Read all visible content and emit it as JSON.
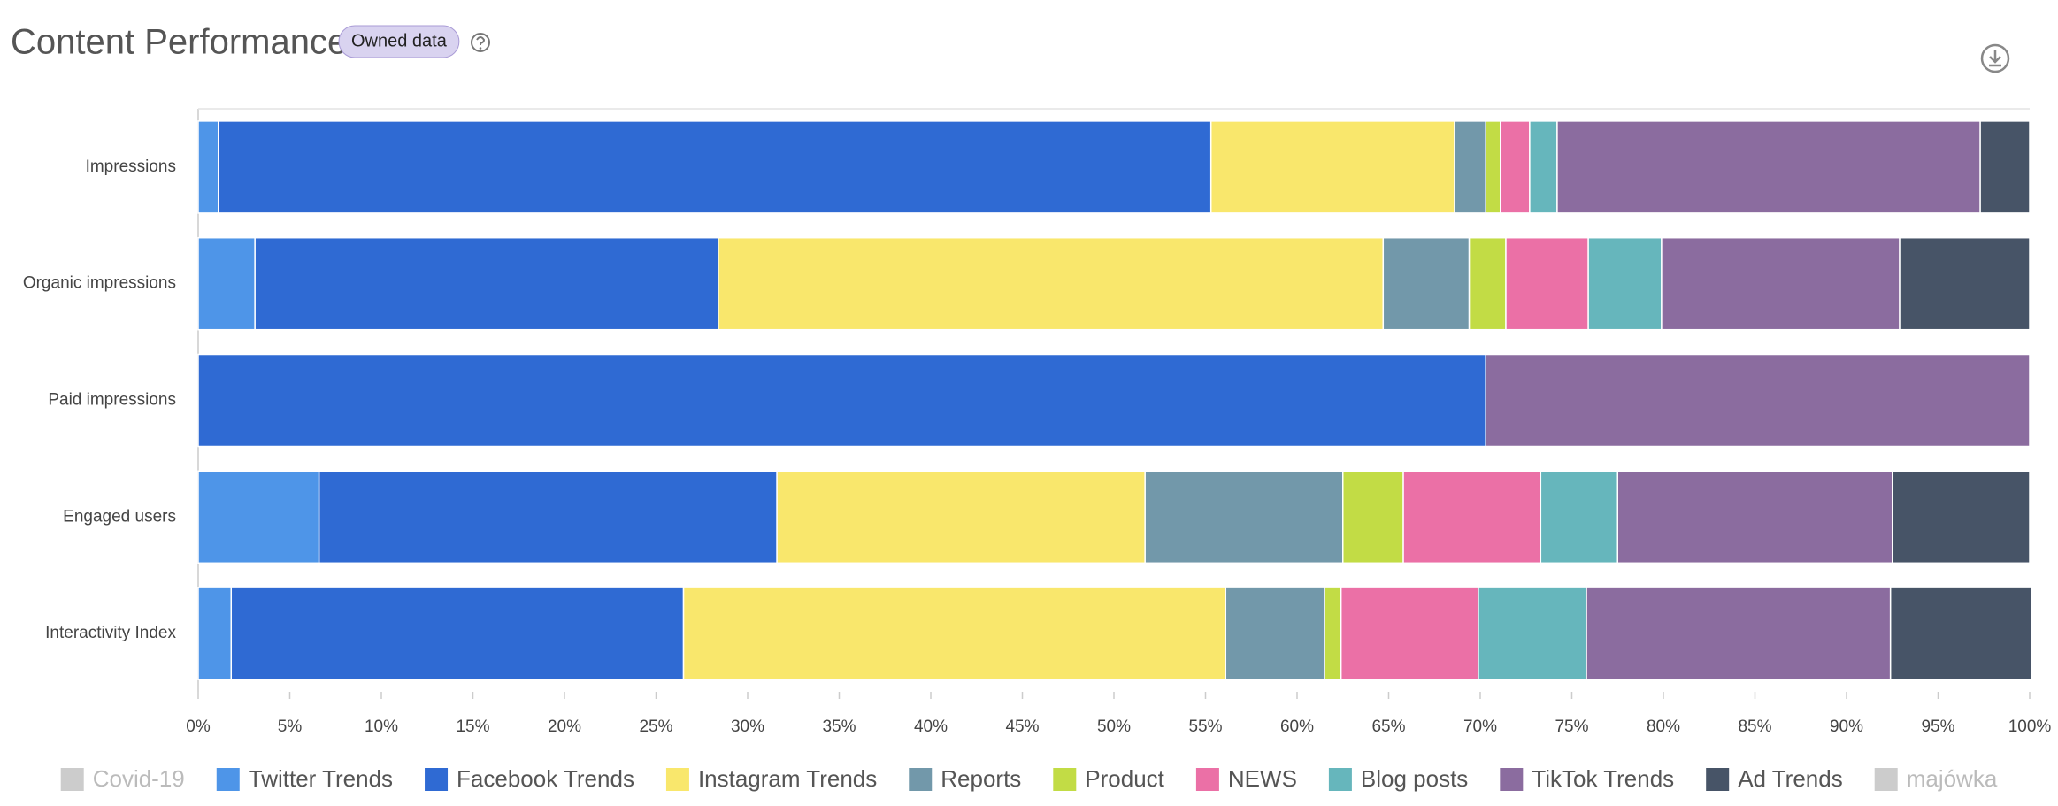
{
  "chart_data": {
    "type": "stacked-bar-horizontal",
    "title": "Content Performance",
    "badge": "Owned data",
    "categories": [
      "Impressions",
      "Organic impressions",
      "Paid impressions",
      "Engaged users",
      "Interactivity Index"
    ],
    "series": [
      {
        "name": "Covid-19",
        "color": "#cccccc",
        "hidden": true,
        "values": [
          null,
          null,
          null,
          null,
          null
        ]
      },
      {
        "name": "Twitter Trends",
        "color": "#4e95e8",
        "values": [
          1.1,
          3.1,
          0,
          6.6,
          1.8
        ]
      },
      {
        "name": "Facebook Trends",
        "color": "#2f6ad3",
        "values": [
          54.2,
          25.3,
          70.3,
          25.0,
          24.7
        ]
      },
      {
        "name": "Instagram Trends",
        "color": "#f9e76c",
        "values": [
          13.3,
          36.3,
          0,
          20.1,
          29.6
        ]
      },
      {
        "name": "Reports",
        "color": "#7298aa",
        "values": [
          1.7,
          4.7,
          0,
          10.8,
          5.4
        ]
      },
      {
        "name": "Product",
        "color": "#c2dc45",
        "values": [
          0.8,
          2.0,
          0,
          3.3,
          0.9
        ]
      },
      {
        "name": "NEWS",
        "color": "#eb70a6",
        "values": [
          1.6,
          4.5,
          0,
          7.5,
          7.5
        ]
      },
      {
        "name": "Blog posts",
        "color": "#66b6bc",
        "values": [
          1.5,
          4.0,
          0,
          4.2,
          5.9
        ]
      },
      {
        "name": "TikTok Trends",
        "color": "#8b6c9f",
        "values": [
          23.1,
          13.0,
          29.7,
          15.0,
          16.6
        ]
      },
      {
        "name": "Ad Trends",
        "color": "#475467",
        "values": [
          2.7,
          7.1,
          0,
          7.5,
          7.7
        ]
      },
      {
        "name": "majówka",
        "color": "#cccccc",
        "hidden": true,
        "values": [
          null,
          null,
          null,
          null,
          null
        ]
      }
    ],
    "xlim": [
      0,
      100
    ],
    "xticks": [
      {
        "value": 0,
        "label": "0%"
      },
      {
        "value": 5,
        "label": "5%"
      },
      {
        "value": 10,
        "label": "10%"
      },
      {
        "value": 15,
        "label": "15%"
      },
      {
        "value": 20,
        "label": "20%"
      },
      {
        "value": 25,
        "label": "25%"
      },
      {
        "value": 30,
        "label": "30%"
      },
      {
        "value": 35,
        "label": "35%"
      },
      {
        "value": 40,
        "label": "40%"
      },
      {
        "value": 45,
        "label": "45%"
      },
      {
        "value": 50,
        "label": "50%"
      },
      {
        "value": 55,
        "label": "55%"
      },
      {
        "value": 60,
        "label": "60%"
      },
      {
        "value": 65,
        "label": "65%"
      },
      {
        "value": 70,
        "label": "70%"
      },
      {
        "value": 75,
        "label": "75%"
      },
      {
        "value": 80,
        "label": "80%"
      },
      {
        "value": 85,
        "label": "85%"
      },
      {
        "value": 90,
        "label": "90%"
      },
      {
        "value": 95,
        "label": "95%"
      },
      {
        "value": 100,
        "label": "100%"
      }
    ]
  }
}
